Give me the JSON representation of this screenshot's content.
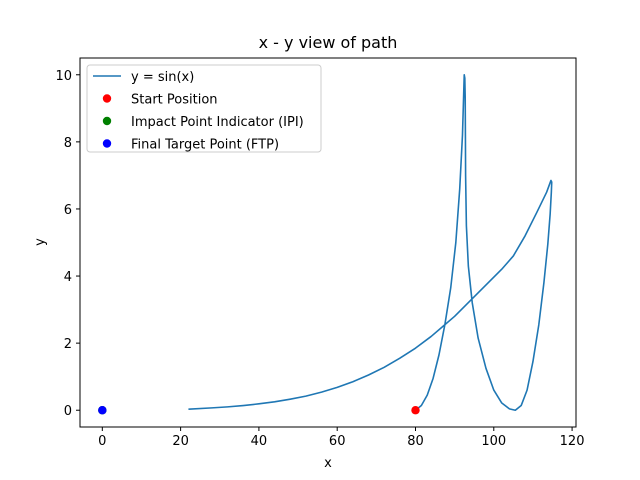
{
  "chart_data": {
    "type": "line",
    "title": "x - y view of path",
    "xlabel": "x",
    "ylabel": "y",
    "xlim": [
      -5.7,
      121.0
    ],
    "ylim": [
      -0.5,
      10.5
    ],
    "xticks": [
      0,
      20,
      40,
      60,
      80,
      100,
      120
    ],
    "yticks": [
      0,
      2,
      4,
      6,
      8,
      10
    ],
    "grid": false,
    "legend_position": "top-left",
    "series": [
      {
        "name": "y = sin(x)",
        "kind": "line",
        "color": "#1f77b4",
        "points": [
          [
            80.0,
            0.0
          ],
          [
            81.5,
            0.14
          ],
          [
            83.0,
            0.45
          ],
          [
            84.5,
            0.95
          ],
          [
            86.0,
            1.65
          ],
          [
            87.5,
            2.55
          ],
          [
            89.0,
            3.65
          ],
          [
            90.3,
            5.0
          ],
          [
            91.3,
            6.6
          ],
          [
            92.0,
            8.2
          ],
          [
            92.3,
            9.4
          ],
          [
            92.45,
            10.0
          ],
          [
            92.6,
            9.9
          ],
          [
            92.7,
            9.3
          ],
          [
            92.75,
            8.2
          ],
          [
            92.8,
            7.0
          ],
          [
            93.0,
            5.5
          ],
          [
            93.5,
            4.3
          ],
          [
            94.5,
            3.2
          ],
          [
            96.0,
            2.15
          ],
          [
            98.0,
            1.25
          ],
          [
            100.0,
            0.6
          ],
          [
            102.0,
            0.22
          ],
          [
            104.0,
            0.04
          ],
          [
            105.5,
            0.0
          ],
          [
            107.0,
            0.14
          ],
          [
            108.5,
            0.6
          ],
          [
            110.0,
            1.45
          ],
          [
            111.5,
            2.55
          ],
          [
            112.8,
            3.8
          ],
          [
            113.8,
            4.95
          ],
          [
            114.4,
            5.85
          ],
          [
            114.7,
            6.5
          ],
          [
            114.8,
            6.8
          ],
          [
            114.6,
            6.85
          ],
          [
            113.5,
            6.5
          ],
          [
            111.0,
            5.9
          ],
          [
            108.0,
            5.2
          ],
          [
            105.0,
            4.6
          ],
          [
            102.0,
            4.2
          ],
          [
            99.0,
            3.85
          ],
          [
            96.0,
            3.5
          ],
          [
            93.0,
            3.15
          ],
          [
            90.0,
            2.8
          ],
          [
            87.0,
            2.5
          ],
          [
            84.0,
            2.2
          ],
          [
            80.0,
            1.85
          ],
          [
            76.0,
            1.55
          ],
          [
            72.0,
            1.28
          ],
          [
            68.0,
            1.05
          ],
          [
            64.0,
            0.85
          ],
          [
            60.0,
            0.68
          ],
          [
            56.0,
            0.54
          ],
          [
            52.0,
            0.42
          ],
          [
            48.0,
            0.33
          ],
          [
            44.0,
            0.25
          ],
          [
            40.0,
            0.19
          ],
          [
            36.0,
            0.14
          ],
          [
            32.0,
            0.1
          ],
          [
            28.0,
            0.07
          ],
          [
            22.0,
            0.03
          ]
        ]
      },
      {
        "name": "Start Position",
        "kind": "scatter",
        "color": "#ff0000",
        "points": [
          [
            80.0,
            0.0
          ]
        ]
      },
      {
        "name": "Impact Point Indicator (IPI)",
        "kind": "scatter",
        "color": "#008000",
        "points": [
          [
            0.0,
            0.0
          ]
        ]
      },
      {
        "name": "Final Target Point (FTP)",
        "kind": "scatter",
        "color": "#0000ff",
        "points": [
          [
            0.0,
            0.0
          ]
        ]
      }
    ]
  }
}
